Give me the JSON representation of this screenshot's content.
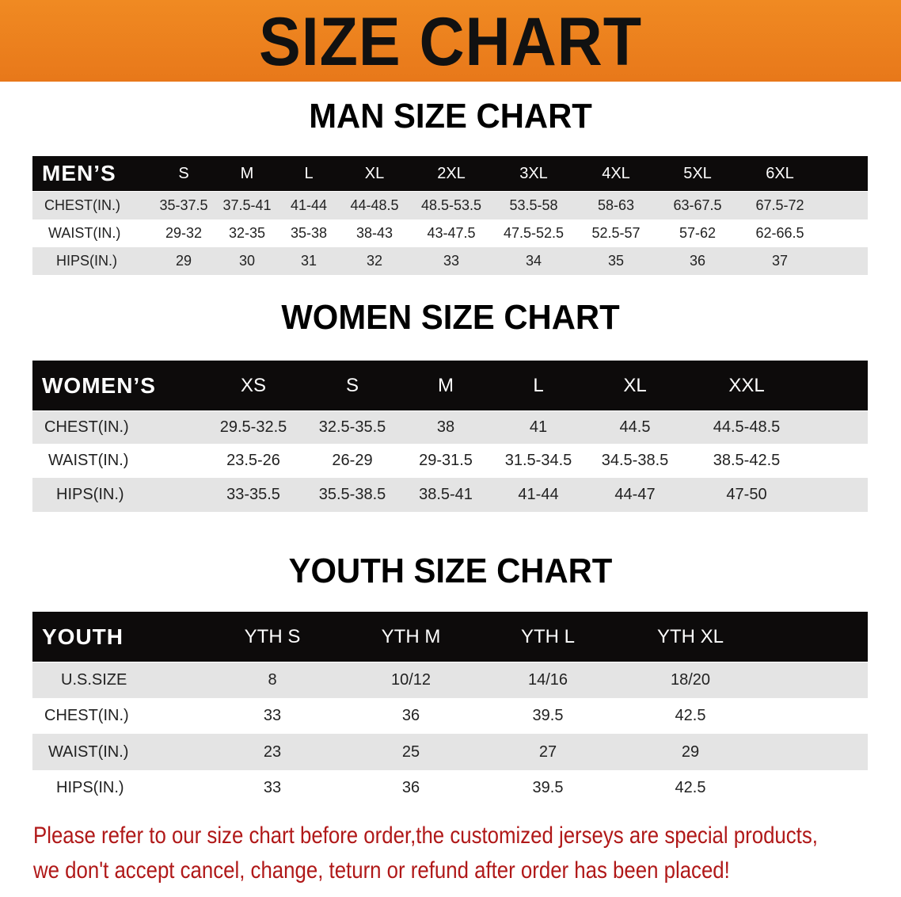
{
  "banner_title": "SIZE CHART",
  "men": {
    "title": "MAN SIZE CHART",
    "header": "MEN’S",
    "sizes": [
      "S",
      "M",
      "L",
      "XL",
      "2XL",
      "3XL",
      "4XL",
      "5XL",
      "6XL"
    ],
    "rows": [
      {
        "label": "CHEST(IN.)",
        "values": [
          "35-37.5",
          "37.5-41",
          "41-44",
          "44-48.5",
          "48.5-53.5",
          "53.5-58",
          "58-63",
          "63-67.5",
          "67.5-72"
        ]
      },
      {
        "label": "WAIST(IN.)",
        "values": [
          "29-32",
          "32-35",
          "35-38",
          "38-43",
          "43-47.5",
          "47.5-52.5",
          "52.5-57",
          "57-62",
          "62-66.5"
        ]
      },
      {
        "label": "HIPS(IN.)",
        "values": [
          "29",
          "30",
          "31",
          "32",
          "33",
          "34",
          "35",
          "36",
          "37"
        ]
      }
    ]
  },
  "women": {
    "title": "WOMEN SIZE CHART",
    "header": "WOMEN’S",
    "sizes": [
      "XS",
      "S",
      "M",
      "L",
      "XL",
      "XXL"
    ],
    "rows": [
      {
        "label": "CHEST(IN.)",
        "values": [
          "29.5-32.5",
          "32.5-35.5",
          "38",
          "41",
          "44.5",
          "44.5-48.5"
        ]
      },
      {
        "label": "WAIST(IN.)",
        "values": [
          "23.5-26",
          "26-29",
          "29-31.5",
          "31.5-34.5",
          "34.5-38.5",
          "38.5-42.5"
        ]
      },
      {
        "label": "HIPS(IN.)",
        "values": [
          "33-35.5",
          "35.5-38.5",
          "38.5-41",
          "41-44",
          "44-47",
          "47-50"
        ]
      }
    ]
  },
  "youth": {
    "title": "YOUTH SIZE CHART",
    "header": "YOUTH",
    "sizes": [
      "YTH S",
      "YTH M",
      "YTH L",
      "YTH XL"
    ],
    "rows": [
      {
        "label": "U.S.SIZE",
        "values": [
          "8",
          "10/12",
          "14/16",
          "18/20"
        ]
      },
      {
        "label": "CHEST(IN.)",
        "values": [
          "33",
          "36",
          "39.5",
          "42.5"
        ]
      },
      {
        "label": "WAIST(IN.)",
        "values": [
          "23",
          "25",
          "27",
          "29"
        ]
      },
      {
        "label": "HIPS(IN.)",
        "values": [
          "33",
          "36",
          "39.5",
          "42.5"
        ]
      }
    ]
  },
  "note": {
    "line1": "Please refer to our size chart before order,the customized jerseys are special products,",
    "line2": "we don't accept cancel, change, teturn or refund after order has been placed!"
  },
  "colors": {
    "banner": "#ec7f1e",
    "header_row": "#0d0b0b",
    "stripe": "#e4e4e4",
    "note": "#b01818"
  }
}
